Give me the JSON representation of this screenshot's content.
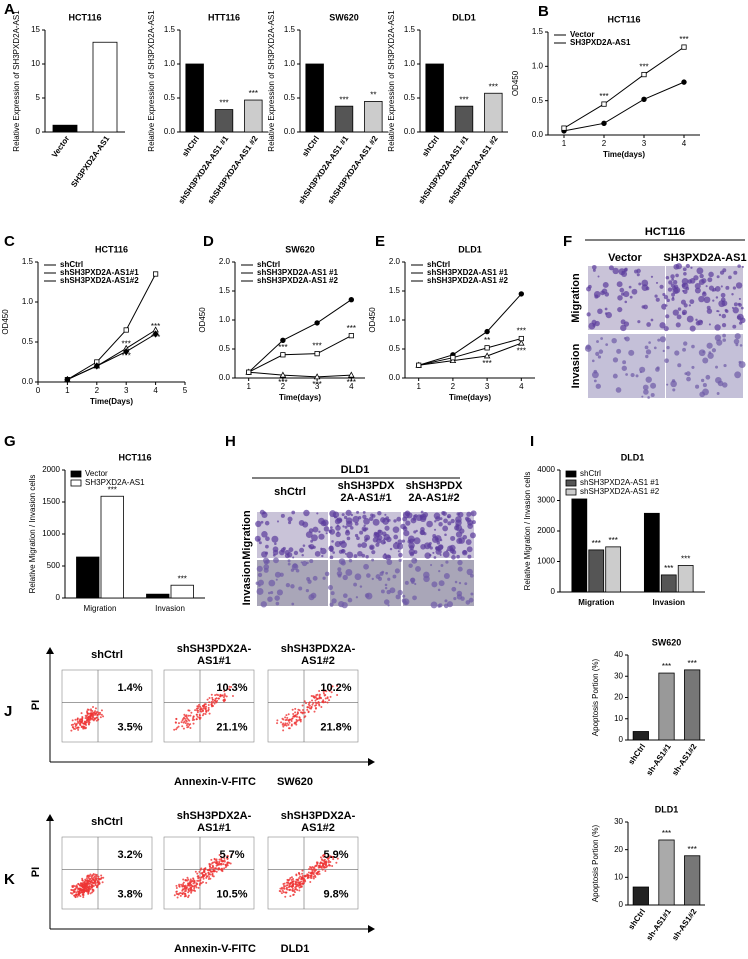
{
  "panel_labels": [
    "A",
    "B",
    "C",
    "D",
    "E",
    "F",
    "G",
    "H",
    "I",
    "J",
    "K"
  ],
  "chart_data": [
    {
      "type": "bar",
      "title": "HCT116",
      "ylabel": "Relative Expression of SH3PXD2A-AS1",
      "categories": [
        "Vector",
        "SH3PXD2A-AS1"
      ],
      "values": [
        1,
        13.2
      ],
      "colors": [
        "#000000",
        "#ffffff"
      ],
      "ylim": [
        0,
        15
      ],
      "yticks": [
        0,
        5,
        10,
        15
      ]
    },
    {
      "type": "bar",
      "title": "HTT116",
      "ylabel": "Relative Expression of SH3PXD2A-AS1",
      "categories": [
        "shCtrl",
        "shSH3PXD2A-AS1 #1",
        "shSH3PXD2A-AS1 #2"
      ],
      "values": [
        1.0,
        0.33,
        0.47
      ],
      "colors": [
        "#000000",
        "#555555",
        "#cccccc"
      ],
      "annotations": [
        null,
        "***",
        "***"
      ],
      "ylim": [
        0,
        1.5
      ],
      "yticks": [
        {
          "value": 0,
          "label": "0.0"
        },
        0.5,
        {
          "value": 1,
          "label": "1.0"
        },
        1.5
      ]
    },
    {
      "type": "bar",
      "title": "SW620",
      "ylabel": "Relative Expression of SH3PXD2A-AS1",
      "categories": [
        "shCtrl",
        "shSH3PXD2A-AS1 #1",
        "shSH3PXD2A-AS1 #2"
      ],
      "values": [
        1.0,
        0.38,
        0.45
      ],
      "colors": [
        "#000000",
        "#555555",
        "#cccccc"
      ],
      "annotations": [
        null,
        "***",
        "**"
      ],
      "ylim": [
        0,
        1.5
      ],
      "yticks": [
        {
          "value": 0,
          "label": "0.0"
        },
        0.5,
        {
          "value": 1,
          "label": "1.0"
        },
        1.5
      ]
    },
    {
      "type": "bar",
      "title": "DLD1",
      "ylabel": "Relative Expression of SH3PXD2A-AS1",
      "categories": [
        "shCtrl",
        "shSH3PXD2A-AS1 #1",
        "shSH3PXD2A-AS1 #2"
      ],
      "values": [
        1.0,
        0.38,
        0.57
      ],
      "colors": [
        "#000000",
        "#555555",
        "#cccccc"
      ],
      "annotations": [
        null,
        "***",
        "***"
      ],
      "ylim": [
        0,
        1.5
      ],
      "yticks": [
        {
          "value": 0,
          "label": "0.0"
        },
        0.5,
        {
          "value": 1,
          "label": "1.0"
        },
        1.5
      ]
    },
    {
      "type": "line",
      "title": "HCT116",
      "xlabel": "Time(days)",
      "ylabel": "OD450",
      "x": [
        1,
        2,
        3,
        4
      ],
      "xlim": [
        0.6,
        4.4
      ],
      "xticks": [
        1,
        2,
        3,
        4
      ],
      "ylim": [
        0,
        1.5
      ],
      "yticks": [
        {
          "value": 0,
          "label": "0.0"
        },
        0.5,
        {
          "value": 1,
          "label": "1.0"
        },
        1.5
      ],
      "legend": "top-left",
      "series": [
        {
          "name": "Vector",
          "color": "#000000",
          "marker": "circle",
          "values": [
            0.06,
            0.17,
            0.52,
            0.77
          ]
        },
        {
          "name": "SH3PXD2A-AS1",
          "color": "#000000",
          "marker": "square",
          "values": [
            0.1,
            0.45,
            0.88,
            1.28
          ],
          "annotations": [
            null,
            "***",
            "***",
            "***"
          ]
        }
      ]
    },
    {
      "type": "line",
      "title": "HCT116",
      "xlabel": "Time(Days)",
      "ylabel": "OD450",
      "x": [
        1,
        2,
        3,
        4
      ],
      "xlim": [
        0,
        5
      ],
      "xticks": [
        0,
        1,
        2,
        3,
        4,
        5
      ],
      "ylim": [
        0,
        1.5
      ],
      "yticks": [
        {
          "value": 0,
          "label": "0.0"
        },
        0.5,
        {
          "value": 1,
          "label": "1.0"
        },
        1.5
      ],
      "legend": "top-left",
      "series": [
        {
          "name": "shCtrl",
          "color": "#000000",
          "marker": "square",
          "values": [
            0.03,
            0.25,
            0.65,
            1.35
          ]
        },
        {
          "name": "shSH3PXD2A-AS1#1",
          "color": "#000000",
          "marker": "triangle",
          "values": [
            0.03,
            0.2,
            0.42,
            0.65
          ],
          "annotations": [
            null,
            null,
            "***",
            "***"
          ]
        },
        {
          "name": "shSH3PXD2A-AS1#2",
          "color": "#000000",
          "marker": "diamond",
          "values": [
            0.03,
            0.2,
            0.38,
            0.6
          ],
          "annotations": [
            null,
            null,
            "***",
            "***"
          ]
        }
      ]
    },
    {
      "type": "line",
      "title": "SW620",
      "xlabel": "Time(days)",
      "ylabel": "OD450",
      "x": [
        1,
        2,
        3,
        4
      ],
      "xlim": [
        0.6,
        4.4
      ],
      "xticks": [
        1,
        2,
        3,
        4
      ],
      "ylim": [
        0,
        2
      ],
      "yticks": [
        {
          "value": 0,
          "label": "0.0"
        },
        0.5,
        {
          "value": 1,
          "label": "1.0"
        },
        1.5,
        {
          "value": 2,
          "label": "2.0"
        }
      ],
      "legend": "top-left",
      "series": [
        {
          "name": "shCtrl",
          "color": "#000000",
          "marker": "circle",
          "values": [
            0.1,
            0.65,
            0.95,
            1.35
          ]
        },
        {
          "name": "shSH3PXD2A-AS1 #1",
          "color": "#000000",
          "marker": "triangle",
          "values": [
            0.1,
            0.05,
            0.02,
            0.05
          ],
          "annotations": [
            null,
            "***",
            "***",
            "***"
          ]
        },
        {
          "name": "shSH3PXD2A-AS1 #2",
          "color": "#000000",
          "marker": "square",
          "values": [
            0.1,
            0.4,
            0.42,
            0.73
          ],
          "annotations": [
            null,
            "***",
            "***",
            "***"
          ]
        }
      ]
    },
    {
      "type": "line",
      "title": "DLD1",
      "xlabel": "Time(days)",
      "ylabel": "OD450",
      "x": [
        1,
        2,
        3,
        4
      ],
      "xlim": [
        0.6,
        4.4
      ],
      "xticks": [
        1,
        2,
        3,
        4
      ],
      "ylim": [
        0,
        2
      ],
      "yticks": [
        {
          "value": 0,
          "label": "0.0"
        },
        0.5,
        {
          "value": 1,
          "label": "1.0"
        },
        1.5,
        {
          "value": 2,
          "label": "2.0"
        }
      ],
      "legend": "top-left",
      "series": [
        {
          "name": "shCtrl",
          "color": "#000000",
          "marker": "circle",
          "values": [
            0.22,
            0.4,
            0.8,
            1.45
          ]
        },
        {
          "name": "shSH3PXD2A-AS1 #1",
          "color": "#000000",
          "marker": "triangle",
          "values": [
            0.22,
            0.3,
            0.38,
            0.6
          ],
          "annotations": [
            null,
            null,
            "***",
            "***"
          ]
        },
        {
          "name": "shSH3PXD2A-AS1 #2",
          "color": "#000000",
          "marker": "square",
          "values": [
            0.22,
            0.35,
            0.52,
            0.68
          ],
          "annotations": [
            null,
            null,
            "**",
            "***"
          ]
        }
      ]
    },
    {
      "type": "grouped_bar",
      "title": "HCT116",
      "ylabel": "Relative Migration / Invasion cells",
      "categories": [
        "Migration",
        "Invasion"
      ],
      "ylim": [
        0,
        2000
      ],
      "yticks": [
        0,
        500,
        1000,
        1500,
        2000
      ],
      "legend": "top-left",
      "series": [
        {
          "name": "Vector",
          "color": "#000000",
          "values": [
            640,
            60
          ]
        },
        {
          "name": "SH3PXD2A-AS1",
          "color": "#ffffff",
          "values": [
            1590,
            200
          ],
          "annotations": [
            "***",
            "***"
          ]
        }
      ]
    },
    {
      "type": "grouped_bar",
      "title": "DLD1",
      "ylabel": "Relative Migration / Invasion cells",
      "categories": [
        "Migration",
        "Invasion"
      ],
      "ylim": [
        0,
        4000
      ],
      "yticks": [
        0,
        1000,
        2000,
        3000,
        4000
      ],
      "legend": "top-left",
      "series": [
        {
          "name": "shCtrl",
          "color": "#000000",
          "values": [
            3050,
            2580
          ]
        },
        {
          "name": "shSH3PXD2A-AS1 #1",
          "color": "#555555",
          "values": [
            1380,
            560
          ],
          "annotations": [
            "***",
            "***"
          ]
        },
        {
          "name": "shSH3PXD2A-AS1 #2",
          "color": "#cccccc",
          "values": [
            1480,
            870
          ],
          "annotations": [
            "***",
            "***"
          ]
        }
      ]
    },
    {
      "type": "bar",
      "title": "SW620",
      "ylabel": "Apoptosis Portion (%)",
      "categories": [
        "shCtrl",
        "sh-AS1#1",
        "sh-AS1#2"
      ],
      "values": [
        4,
        31.5,
        33
      ],
      "colors": [
        "#222222",
        "#999999",
        "#777777"
      ],
      "annotations": [
        null,
        "***",
        "***"
      ],
      "ylim": [
        0,
        40
      ],
      "yticks": [
        0,
        10,
        20,
        30,
        40
      ]
    },
    {
      "type": "bar",
      "title": "DLD1",
      "ylabel": "Apoptosis Portion (%)",
      "categories": [
        "shCtrl",
        "sh-AS1#1",
        "sh-AS1#2"
      ],
      "values": [
        6.5,
        23.5,
        17.8
      ],
      "colors": [
        "#222222",
        "#aaaaaa",
        "#777777"
      ],
      "annotations": [
        null,
        "***",
        "***"
      ],
      "ylim": [
        0,
        30
      ],
      "yticks": [
        0,
        10,
        20,
        30
      ]
    }
  ],
  "image_panels": [
    {
      "title": "HCT116",
      "columns": [
        [
          "Vector"
        ],
        [
          "SH3PXD2A-AS1"
        ]
      ],
      "rows": [
        "Migration",
        "Invasion"
      ]
    },
    {
      "title": "DLD1",
      "columns": [
        [
          "shCtrl"
        ],
        [
          "shSH3PDX",
          "2A-AS1#1"
        ],
        [
          "shSH3PDX",
          "2A-AS1#2"
        ]
      ],
      "rows": [
        "Migration",
        "Invasion"
      ]
    }
  ],
  "flow_panels": [
    {
      "columns": [
        [
          "shCtrl"
        ],
        [
          "shSH3PDX2A-",
          "AS1#1"
        ],
        [
          "shSH3PDX2A-",
          "AS1#2"
        ]
      ],
      "percents": [
        [
          "1.4%",
          "3.5%"
        ],
        [
          "10.3%",
          "21.1%"
        ],
        [
          "10.2%",
          "21.8%"
        ]
      ],
      "ylabel": "PI",
      "xlabel": "Annexin-V-FITC",
      "cell_line": "SW620"
    },
    {
      "columns": [
        [
          "shCtrl"
        ],
        [
          "shSH3PDX2A-",
          "AS1#1"
        ],
        [
          "shSH3PDX2A-",
          "AS1#2"
        ]
      ],
      "percents": [
        [
          "3.2%",
          "3.8%"
        ],
        [
          "5.7%",
          "10.5%"
        ],
        [
          "5.9%",
          "9.8%"
        ]
      ],
      "ylabel": "PI",
      "xlabel": "Annexin-V-FITC",
      "cell_line": "DLD1"
    }
  ]
}
